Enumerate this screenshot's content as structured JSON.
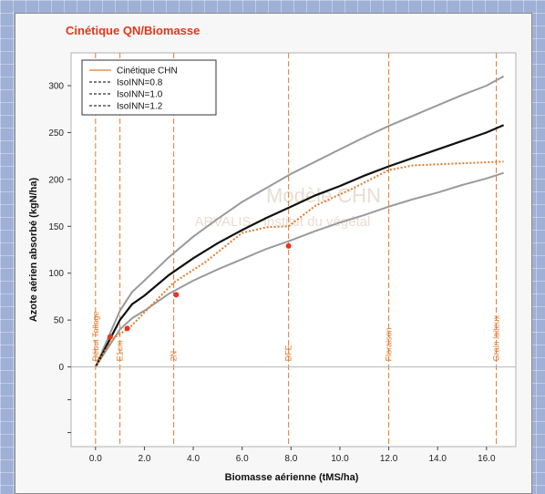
{
  "chart_data": {
    "type": "line",
    "title": "Cinétique QN/Biomasse",
    "xlabel": "Biomasse aérienne (tMS/ha)",
    "ylabel": "Azote aérien absorbé (kgN/ha)",
    "xlim": [
      -1,
      17.2
    ],
    "ylim": [
      -85,
      335
    ],
    "xticks": [
      0,
      2,
      4,
      6,
      8,
      10,
      12,
      14,
      16
    ],
    "xtick_labels": [
      "0.0",
      "2.0",
      "4.0",
      "6.0",
      "8.0",
      "10.0",
      "12.0",
      "14.0",
      "16.0"
    ],
    "yticks": [
      0,
      50,
      100,
      150,
      200,
      250,
      300
    ],
    "ytick_labels": [
      "0",
      "50",
      "100",
      "150",
      "200",
      "250",
      "300"
    ],
    "grid": false,
    "legend_position": "top-left",
    "watermark": [
      "Modèle CHN",
      "ARVALIS - Institut du végétal"
    ],
    "colors": {
      "kinetic": "#e27a2c",
      "inn08": "#9a9a9a",
      "inn10": "#111111",
      "inn12": "#9a9a9a",
      "points": "#e8341c",
      "stages": "#e27a2c"
    },
    "legend": [
      {
        "label": "Cinétique CHN",
        "style": "solid",
        "color": "#e27a2c"
      },
      {
        "label": "IsoINN=0.8",
        "style": "dashed",
        "color": "#333333"
      },
      {
        "label": "IsoINN=1.0",
        "style": "dashed",
        "color": "#333333"
      },
      {
        "label": "IsoINN=1.2",
        "style": "dashed",
        "color": "#333333"
      }
    ],
    "series": [
      {
        "name": "Cinétique CHN",
        "style": "dotted",
        "color": "#e27a2c",
        "x": [
          0,
          0.4,
          0.8,
          1.4,
          2.0,
          3.2,
          4.5,
          6.0,
          7.0,
          7.9,
          9.0,
          10.5,
          12.0,
          13.0,
          16.7
        ],
        "y": [
          0,
          18,
          32,
          42,
          58,
          90,
          112,
          143,
          149,
          150,
          172,
          190,
          210,
          215,
          219
        ]
      },
      {
        "name": "IsoINN=0.8",
        "style": "solid",
        "color": "#9a9a9a",
        "x": [
          0,
          0.5,
          1.0,
          1.5,
          2,
          3,
          4,
          5,
          6,
          7,
          8,
          9,
          10,
          11,
          12,
          13,
          14,
          15,
          16,
          16.7
        ],
        "y": [
          0,
          20,
          40,
          52,
          60,
          78,
          92,
          104,
          115,
          126,
          135,
          145,
          154,
          162,
          171,
          179,
          186,
          194,
          201,
          207
        ]
      },
      {
        "name": "IsoINN=1.0",
        "style": "solid",
        "color": "#111111",
        "x": [
          0,
          0.5,
          1.0,
          1.5,
          2,
          3,
          4,
          5,
          6,
          7,
          8,
          9,
          10,
          11,
          12,
          13,
          14,
          15,
          16,
          16.7
        ],
        "y": [
          0,
          25,
          50,
          67,
          76,
          98,
          116,
          132,
          146,
          159,
          171,
          183,
          193,
          204,
          214,
          223,
          232,
          241,
          250,
          258
        ]
      },
      {
        "name": "IsoINN=1.2",
        "style": "solid",
        "color": "#9a9a9a",
        "x": [
          0,
          0.5,
          1.0,
          1.5,
          2,
          3,
          4,
          5,
          6,
          7,
          8,
          9,
          10,
          11,
          12,
          13,
          14,
          15,
          16,
          16.7
        ],
        "y": [
          0,
          30,
          60,
          80,
          92,
          117,
          139,
          158,
          176,
          191,
          206,
          219,
          232,
          245,
          257,
          268,
          279,
          290,
          300,
          310
        ]
      }
    ],
    "points": [
      {
        "x": 0.6,
        "y": 32
      },
      {
        "x": 1.3,
        "y": 41
      },
      {
        "x": 3.3,
        "y": 77
      },
      {
        "x": 7.9,
        "y": 129
      }
    ],
    "stages": [
      {
        "x": 0.0,
        "label": "Début Tallage"
      },
      {
        "x": 1.0,
        "label": "E1cm"
      },
      {
        "x": 3.2,
        "label": "2N"
      },
      {
        "x": 7.9,
        "label": "DFE"
      },
      {
        "x": 12.0,
        "label": "Floraison"
      },
      {
        "x": 16.4,
        "label": "Grain laiteux"
      }
    ]
  }
}
